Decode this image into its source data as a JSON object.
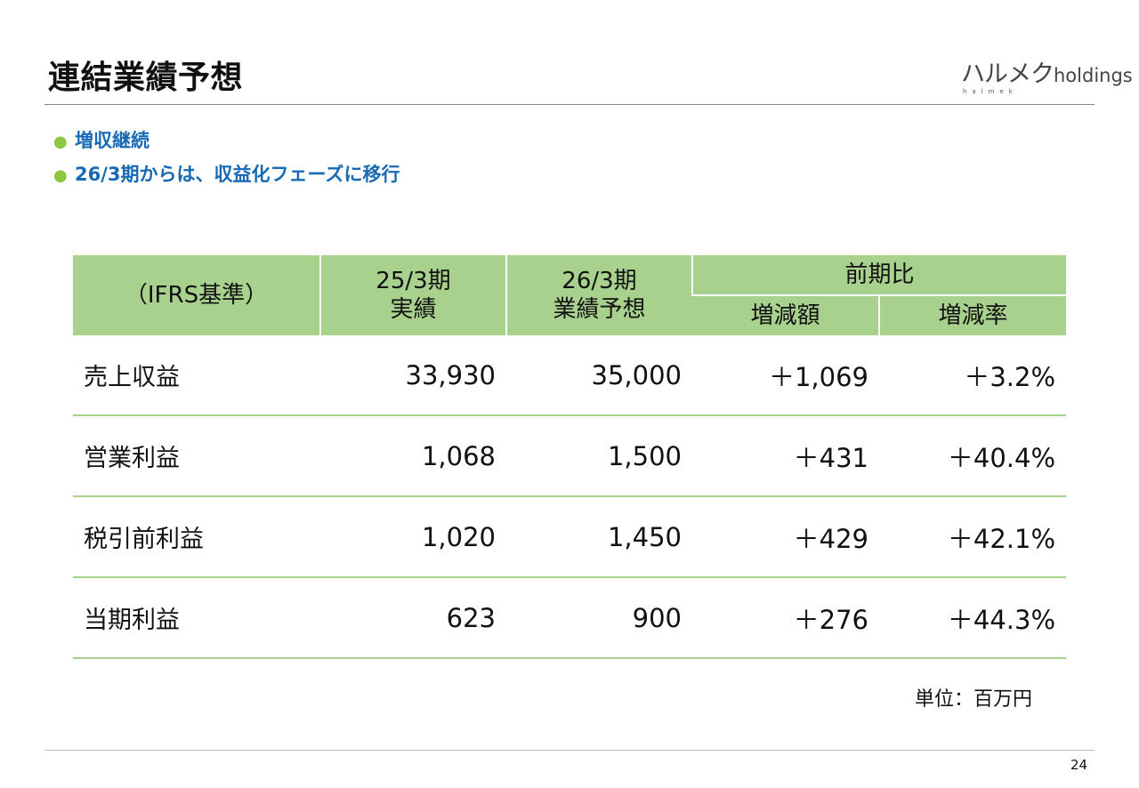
{
  "slide": {
    "title": "連結業績予想",
    "page_number": "24",
    "unit_note": "単位：百万円"
  },
  "logo": {
    "main_kana": "ハルメク",
    "main_latin": "holdings",
    "sub": "halmek"
  },
  "bullets": [
    "増収継続",
    "26/3期からは、収益化フェーズに移行"
  ],
  "table": {
    "header": {
      "basis": "（IFRS基準）",
      "col1_line1": "25/3期",
      "col1_line2": "実績",
      "col2_line1": "26/3期",
      "col2_line2": "業績予想",
      "group": "前期比",
      "col3": "増減額",
      "col4": "増減率"
    },
    "rows": [
      {
        "label": "売上収益",
        "fy25": "33,930",
        "fy26": "35,000",
        "diff": "＋1,069",
        "rate": "＋3.2%"
      },
      {
        "label": "営業利益",
        "fy25": "1,068",
        "fy26": "1,500",
        "diff": "＋431",
        "rate": "＋40.4%"
      },
      {
        "label": "税引前利益",
        "fy25": "1,020",
        "fy26": "1,450",
        "diff": "＋429",
        "rate": "＋42.1%"
      },
      {
        "label": "当期利益",
        "fy25": "623",
        "fy26": "900",
        "diff": "＋276",
        "rate": "＋44.3%"
      }
    ]
  },
  "colors": {
    "header_bg": "#a9d18e",
    "bullet_text": "#1769b5",
    "bullet_dot": "#8dc63f"
  }
}
